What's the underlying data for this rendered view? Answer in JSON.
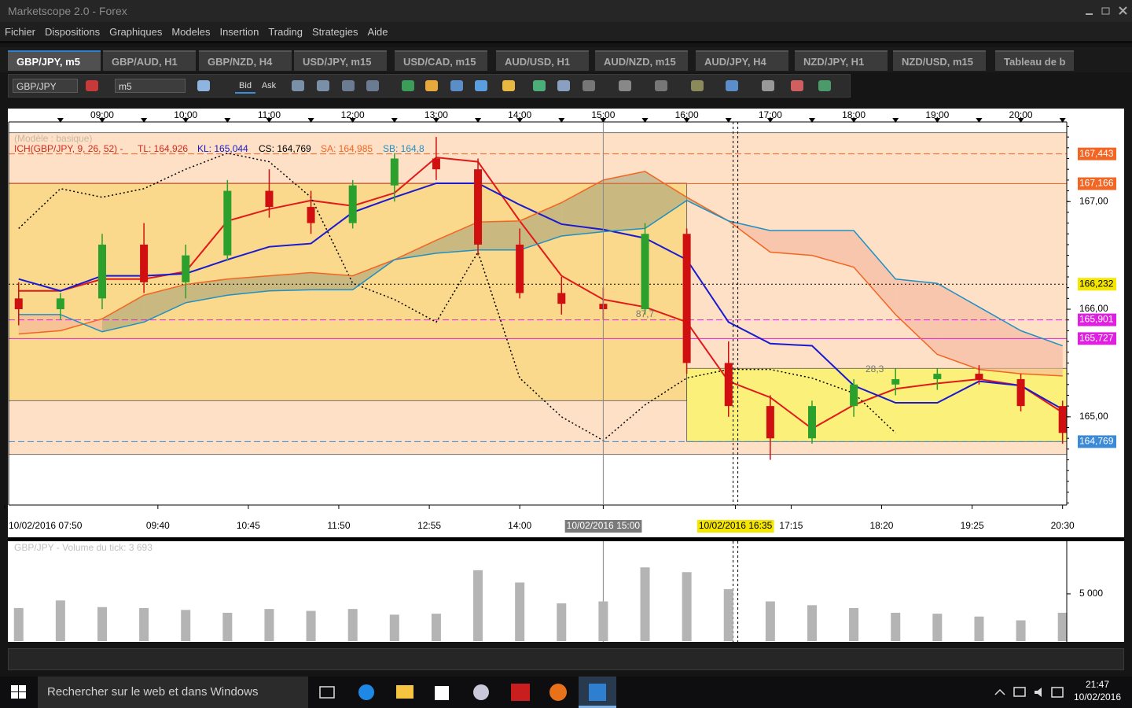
{
  "window": {
    "title": "Marketscope 2.0 - Forex"
  },
  "menu": [
    "Fichier",
    "Dispositions",
    "Graphiques",
    "Modeles",
    "Insertion",
    "Trading",
    "Strategies",
    "Aide"
  ],
  "tabs": [
    "GBP/JPY, m5",
    "GBP/AUD, H1",
    "GBP/NZD, H4",
    "USD/JPY, m15",
    "USD/CAD, m15",
    "AUD/USD, H1",
    "AUD/NZD, m15",
    "AUD/JPY, H4",
    "NZD/JPY, H1",
    "NZD/USD, m15",
    "Tableau de b"
  ],
  "toolbar": {
    "symbol": "GBP/JPY",
    "timeframe": "m5",
    "bid": "Bid",
    "ask": "Ask"
  },
  "chart_data": {
    "type": "candlestick",
    "model_label": "(Modèle : basique)",
    "legend": [
      {
        "text": "ICH(GBP/JPY, 9, 26, 52) -",
        "color": "#d42a1c"
      },
      {
        "text": "TL: 164,926",
        "color": "#d42a1c"
      },
      {
        "text": "KL: 165,044",
        "color": "#1a1ac8"
      },
      {
        "text": "CS: 164,769",
        "color": "#000000"
      },
      {
        "text": "SA: 164,985",
        "color": "#f26522"
      },
      {
        "text": "SB: 164,8",
        "color": "#1f8fc4"
      }
    ],
    "x": [
      8.0,
      8.5,
      9.0,
      9.5,
      10.0,
      10.5,
      11.0,
      11.5,
      12.0,
      12.5,
      13.0,
      13.5,
      14.0,
      14.5,
      15.0,
      15.5,
      16.0,
      16.5,
      17.0,
      17.5,
      18.0,
      18.5,
      19.0,
      19.5,
      20.0,
      20.5
    ],
    "open": [
      166.1,
      166.0,
      166.1,
      166.6,
      166.25,
      166.5,
      167.1,
      166.95,
      166.8,
      167.15,
      167.4,
      167.3,
      166.6,
      166.15,
      166.05,
      166.0,
      166.7,
      165.5,
      165.1,
      164.8,
      165.1,
      165.3,
      165.35,
      165.4,
      165.35,
      165.1
    ],
    "high": [
      166.25,
      166.15,
      166.7,
      166.8,
      166.6,
      167.2,
      167.3,
      167.1,
      167.2,
      167.45,
      167.6,
      167.4,
      166.75,
      166.3,
      166.2,
      166.8,
      166.75,
      165.7,
      165.2,
      165.15,
      165.35,
      165.45,
      165.45,
      165.48,
      165.4,
      165.15
    ],
    "low": [
      165.85,
      165.9,
      166.0,
      166.15,
      166.1,
      166.45,
      166.85,
      166.7,
      166.75,
      167.0,
      167.2,
      166.5,
      166.1,
      165.95,
      165.9,
      165.95,
      165.4,
      165.0,
      164.6,
      164.75,
      165.0,
      165.2,
      165.25,
      165.3,
      165.05,
      164.75
    ],
    "close": [
      166.0,
      166.1,
      166.6,
      166.25,
      166.5,
      167.1,
      166.95,
      166.8,
      167.15,
      167.4,
      167.3,
      166.6,
      166.15,
      166.05,
      166.0,
      166.7,
      165.5,
      165.1,
      164.8,
      165.1,
      165.3,
      165.35,
      165.4,
      165.35,
      165.1,
      164.85
    ],
    "up_color": "#2ca02c",
    "down_color": "#d01010",
    "series": [
      {
        "color": "#e01a1a",
        "style": "solid",
        "width": 2,
        "values": [
          166.17,
          166.17,
          166.28,
          166.28,
          166.35,
          166.82,
          166.93,
          167.01,
          166.96,
          167.08,
          167.41,
          167.37,
          166.82,
          166.31,
          166.09,
          166.02,
          165.88,
          165.33,
          165.18,
          164.89,
          165.11,
          165.26,
          165.31,
          165.35,
          165.29,
          165.04
        ]
      },
      {
        "color": "#1a1ad0",
        "style": "solid",
        "width": 2,
        "values": [
          166.28,
          166.17,
          166.31,
          166.31,
          166.33,
          166.46,
          166.58,
          166.61,
          166.9,
          167.04,
          167.17,
          167.17,
          166.97,
          166.79,
          166.74,
          166.66,
          166.46,
          165.88,
          165.68,
          165.66,
          165.29,
          165.13,
          165.13,
          165.33,
          165.29,
          165.07
        ]
      },
      {
        "color": "#000000",
        "style": "dotted",
        "width": 1.5,
        "values": [
          166.75,
          167.12,
          167.04,
          167.12,
          167.3,
          167.45,
          167.37,
          167.04,
          166.24,
          166.09,
          165.88,
          166.53,
          165.36,
          165.0,
          164.78,
          165.11,
          165.36,
          165.44,
          165.44,
          165.36,
          165.22,
          164.85,
          null,
          null,
          null,
          null
        ]
      },
      {
        "color": "#f26522",
        "style": "solid",
        "width": 1.5,
        "values": [
          165.77,
          165.8,
          165.91,
          166.13,
          166.23,
          166.28,
          166.31,
          166.34,
          166.31,
          166.46,
          166.64,
          166.81,
          166.82,
          166.99,
          167.2,
          167.28,
          167.04,
          166.82,
          166.53,
          166.5,
          166.39,
          165.95,
          165.58,
          165.44,
          165.4,
          165.38
        ]
      },
      {
        "color": "#1f8fc4",
        "style": "solid",
        "width": 1.5,
        "values": [
          165.95,
          165.95,
          165.79,
          165.88,
          166.06,
          166.13,
          166.17,
          166.18,
          166.18,
          166.46,
          166.52,
          166.55,
          166.55,
          166.68,
          166.72,
          166.75,
          167.01,
          166.82,
          166.73,
          166.73,
          166.73,
          166.28,
          166.24,
          166.02,
          165.8,
          165.66
        ]
      }
    ],
    "cloud_colors": [
      "#a9a57a",
      "#f4b49c"
    ],
    "xlim": [
      7.88,
      20.55
    ],
    "ylim": [
      164.18,
      167.74
    ],
    "xticks": [
      {
        "value": 9,
        "label": "09:00"
      },
      {
        "value": 10,
        "label": "10:00"
      },
      {
        "value": 11,
        "label": "11:00"
      },
      {
        "value": 12,
        "label": "12:00"
      },
      {
        "value": 13,
        "label": "13:00"
      },
      {
        "value": 14,
        "label": "14:00"
      },
      {
        "value": 15,
        "label": "15:00"
      },
      {
        "value": 16,
        "label": "16:00"
      },
      {
        "value": 17,
        "label": "17:00"
      },
      {
        "value": 18,
        "label": "18:00"
      },
      {
        "value": 19,
        "label": "19:00"
      },
      {
        "value": 20,
        "label": "20:00"
      }
    ],
    "yticks": [
      {
        "value": 167,
        "label": "167,00"
      },
      {
        "value": 166,
        "label": "166,00"
      },
      {
        "value": 165,
        "label": "165,00"
      }
    ],
    "bottom_xticks": [
      {
        "value": 7.833,
        "label": "10/02/2016 07:50"
      },
      {
        "value": 9.667,
        "label": "09:40"
      },
      {
        "value": 10.75,
        "label": "10:45"
      },
      {
        "value": 11.833,
        "label": "11:50"
      },
      {
        "value": 12.917,
        "label": "12:55"
      },
      {
        "value": 14.0,
        "label": "14:00"
      },
      {
        "value": 15.0,
        "label": "10/02/2016 15:00",
        "highlight": "#7a7a7a"
      },
      {
        "value": 16.583,
        "label": "10/02/2016 16:35",
        "highlight": "#f5e600"
      },
      {
        "value": 17.25,
        "label": "17:15"
      },
      {
        "value": 18.333,
        "label": "18:20"
      },
      {
        "value": 19.417,
        "label": "19:25"
      },
      {
        "value": 20.5,
        "label": "20:30"
      }
    ],
    "levels": [
      {
        "value": 167.443,
        "label": "167,443",
        "color": "#f26522",
        "text_color": "#ffffff",
        "style": "dashed"
      },
      {
        "value": 167.166,
        "label": "167,166",
        "color": "#f26522",
        "text_color": "#ffffff",
        "style": "solid"
      },
      {
        "value": 166.232,
        "label": "166,232",
        "color": "#f5e600",
        "text_color": "#000000",
        "style": "dotted"
      },
      {
        "value": 165.901,
        "label": "165,901",
        "color": "#e020e0",
        "text_color": "#ffffff",
        "style": "dashed"
      },
      {
        "value": 165.727,
        "label": "165,727",
        "color": "#e020e0",
        "text_color": "#ffffff",
        "style": "solid"
      },
      {
        "value": 164.769,
        "label": "164,769",
        "color": "#3a8ad8",
        "text_color": "#ffffff",
        "style": "dashed"
      }
    ],
    "zones": [
      {
        "x": [
          7.88,
          20.55
        ],
        "y": [
          164.65,
          167.64
        ],
        "color": "#fde0c6"
      },
      {
        "x": [
          7.88,
          16.0
        ],
        "y": [
          165.15,
          167.17
        ],
        "color": "#fad88c"
      },
      {
        "x": [
          16.0,
          20.55
        ],
        "y": [
          164.77,
          165.45
        ],
        "color": "#fbf07a"
      }
    ],
    "annotations": [
      {
        "x": 15.5,
        "y": 165.95,
        "text": "87,7"
      },
      {
        "x": 18.25,
        "y": 165.44,
        "text": "28,3"
      }
    ],
    "volume": {
      "label": "GBP/JPY - Volume du tick: 3 693",
      "color": "#b4b4b4",
      "values": [
        3500,
        4300,
        3600,
        3500,
        3300,
        3000,
        3400,
        3200,
        3400,
        2800,
        2900,
        7500,
        6200,
        4000,
        4200,
        7800,
        7300,
        5500,
        4200,
        3800,
        3500,
        3000,
        2900,
        2600,
        2200,
        3000
      ],
      "ylim": [
        0,
        10400
      ],
      "yticks": [
        {
          "value": 5000,
          "label": "5 000"
        }
      ]
    }
  },
  "taskbar": {
    "search": "Rechercher sur le web et dans Windows",
    "time": "21:47",
    "date": "10/02/2016"
  }
}
